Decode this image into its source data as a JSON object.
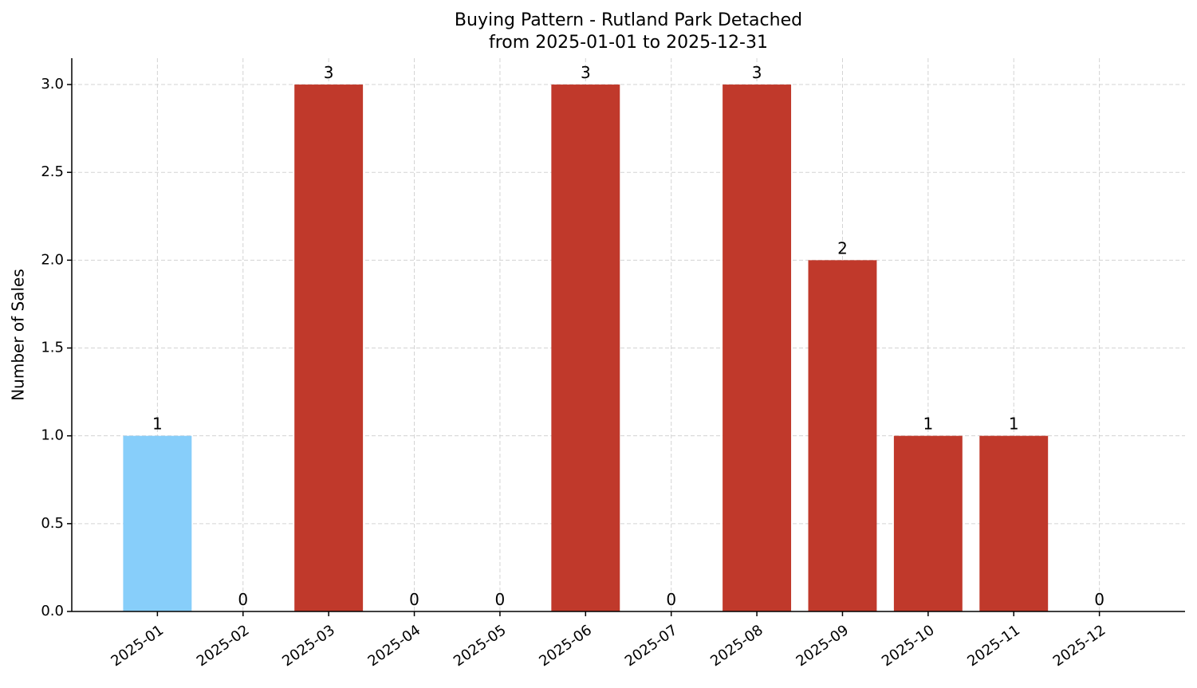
{
  "chart_data": {
    "type": "bar",
    "title": "Buying Pattern - Rutland Park Detached",
    "subtitle": "from 2025-01-01 to 2025-12-31",
    "y_label": "Number of Sales",
    "categories": [
      "2025-01",
      "2025-02",
      "2025-03",
      "2025-04",
      "2025-05",
      "2025-06",
      "2025-07",
      "2025-08",
      "2025-09",
      "2025-10",
      "2025-11",
      "2025-12"
    ],
    "values": [
      1,
      0,
      3,
      0,
      0,
      3,
      0,
      3,
      2,
      1,
      1,
      0
    ],
    "colors": [
      "#87cefa",
      "#c0392b",
      "#c0392b",
      "#c0392b",
      "#c0392b",
      "#c0392b",
      "#c0392b",
      "#c0392b",
      "#c0392b",
      "#c0392b",
      "#c0392b",
      "#c0392b"
    ],
    "ylim": [
      0,
      3.15
    ],
    "yticks": [
      {
        "value": 0,
        "label": "0.0"
      },
      {
        "value": 0.5,
        "label": "0.5"
      },
      {
        "value": 1,
        "label": "1.0"
      },
      {
        "value": 1.5,
        "label": "1.5"
      },
      {
        "value": 2,
        "label": "2.0"
      },
      {
        "value": 2.5,
        "label": "2.5"
      },
      {
        "value": 3,
        "label": "3.0"
      }
    ],
    "grid": true
  }
}
